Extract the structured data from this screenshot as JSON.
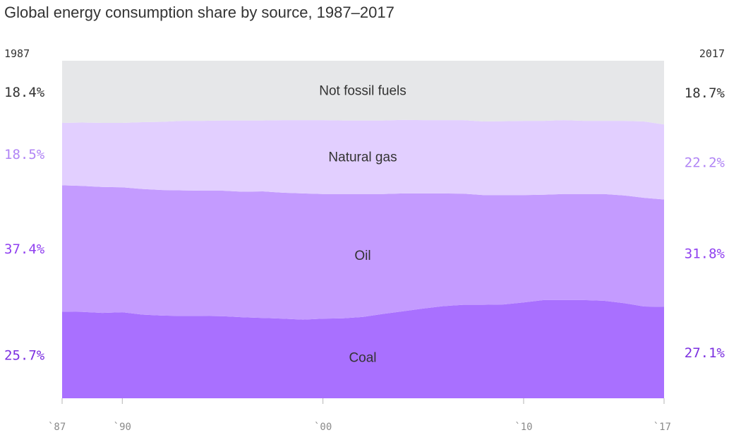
{
  "chart_data": {
    "type": "area",
    "stacked": true,
    "normalized": true,
    "title": "Global energy consumption share by source, 1987–2017",
    "start_label": "1987",
    "end_label": "2017",
    "x": [
      1987,
      1988,
      1989,
      1990,
      1991,
      1992,
      1993,
      1994,
      1995,
      1996,
      1997,
      1998,
      1999,
      2000,
      2001,
      2002,
      2003,
      2004,
      2005,
      2006,
      2007,
      2008,
      2009,
      2010,
      2011,
      2012,
      2013,
      2014,
      2015,
      2016,
      2017
    ],
    "xlim": [
      1987,
      2017
    ],
    "ylim": [
      0,
      100
    ],
    "x_ticks": [
      {
        "value": 1987,
        "label": "`87"
      },
      {
        "value": 1990,
        "label": "`90"
      },
      {
        "value": 2000,
        "label": "`00"
      },
      {
        "value": 2010,
        "label": "`10"
      },
      {
        "value": 2017,
        "label": "`17"
      }
    ],
    "series": [
      {
        "name": "Coal",
        "color": "#a970ff",
        "label_color": "#7b2fe0",
        "start_label": "25.7%",
        "end_label": "27.1%",
        "values": [
          25.7,
          25.6,
          25.3,
          25.5,
          24.8,
          24.5,
          24.4,
          24.4,
          24.3,
          24.0,
          23.8,
          23.6,
          23.3,
          23.6,
          23.7,
          24.1,
          25.0,
          25.8,
          26.6,
          27.3,
          27.7,
          27.7,
          27.8,
          28.4,
          29.1,
          29.1,
          29.1,
          28.9,
          28.2,
          27.2,
          27.1
        ]
      },
      {
        "name": "Oil",
        "color": "#c49bff",
        "label_color": "#9040f0",
        "start_label": "37.4%",
        "end_label": "31.8%",
        "values": [
          37.4,
          37.3,
          37.3,
          37.0,
          37.2,
          37.2,
          37.2,
          37.1,
          37.2,
          37.2,
          37.5,
          37.3,
          37.4,
          36.9,
          36.8,
          36.4,
          35.5,
          34.9,
          34.1,
          33.4,
          32.9,
          32.5,
          32.4,
          31.8,
          31.2,
          31.4,
          31.4,
          31.6,
          31.9,
          32.2,
          31.8
        ]
      },
      {
        "name": "Natural gas",
        "color": "#e2cfff",
        "label_color": "#b084f5",
        "start_label": "18.5%",
        "end_label": "22.2%",
        "values": [
          18.5,
          18.8,
          19.0,
          19.1,
          19.8,
          20.2,
          20.6,
          20.7,
          20.8,
          21.1,
          21.0,
          21.5,
          21.7,
          21.9,
          21.8,
          21.8,
          21.8,
          21.8,
          21.7,
          21.7,
          21.8,
          21.8,
          21.9,
          22.0,
          21.9,
          21.9,
          21.7,
          21.7,
          22.1,
          22.6,
          22.2
        ]
      },
      {
        "name": "Not fossil fuels",
        "color": "#e6e7e9",
        "label_color": "#333333",
        "start_label": "18.4%",
        "end_label": "18.7%",
        "values": [
          18.4,
          18.3,
          18.4,
          18.4,
          18.2,
          18.1,
          17.8,
          17.8,
          17.7,
          17.7,
          17.7,
          17.6,
          17.6,
          17.6,
          17.7,
          17.7,
          17.7,
          17.5,
          17.6,
          17.6,
          17.6,
          18.0,
          17.9,
          17.8,
          17.8,
          17.6,
          17.8,
          17.8,
          17.8,
          18.0,
          18.7
        ]
      }
    ]
  }
}
